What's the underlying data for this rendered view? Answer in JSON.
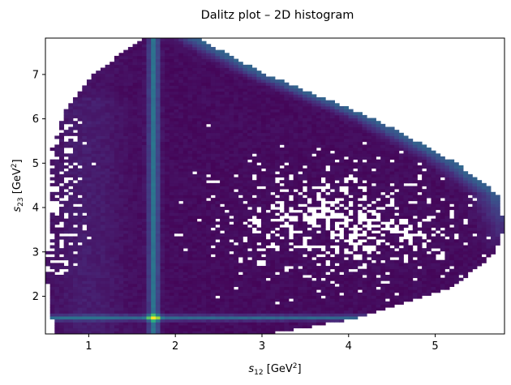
{
  "chart_data": {
    "type": "heatmap",
    "title": "Dalitz plot – 2D histogram",
    "xlabel": {
      "var": "s",
      "sub": "12",
      "unit": "[GeV",
      "sup": "2",
      "close": "]"
    },
    "ylabel": {
      "var": "s",
      "sub": "23",
      "unit": "[GeV",
      "sup": "2",
      "close": "]"
    },
    "xlim": [
      0.5,
      5.8
    ],
    "ylim": [
      1.15,
      7.82
    ],
    "xticks": [
      1,
      2,
      3,
      4,
      5
    ],
    "yticks": [
      2,
      3,
      4,
      5,
      6,
      7
    ],
    "grid": false,
    "colormap": "viridis",
    "bins": {
      "x": 100,
      "y": 100
    },
    "kinematic_boundary": {
      "left_edge": [
        [
          1.15,
          0.6
        ],
        [
          2.4,
          0.52
        ],
        [
          5.2,
          0.55
        ],
        [
          6.2,
          0.72
        ],
        [
          7.0,
          1.05
        ],
        [
          7.5,
          1.4
        ],
        [
          7.82,
          1.62
        ]
      ],
      "right_edge": [
        [
          1.15,
          3.05
        ],
        [
          1.5,
          4.1
        ],
        [
          2.2,
          5.2
        ],
        [
          3.0,
          5.7
        ],
        [
          3.6,
          5.8
        ],
        [
          4.3,
          5.72
        ],
        [
          5.0,
          5.25
        ],
        [
          6.0,
          4.3
        ],
        [
          7.0,
          3.05
        ],
        [
          7.82,
          2.25
        ]
      ]
    },
    "resonance_bands": [
      {
        "axis": "x",
        "center": 1.75,
        "width": 0.06,
        "strength": 0.35
      },
      {
        "axis": "y",
        "center": 1.52,
        "width": 0.06,
        "strength": 0.3
      },
      {
        "axis": "diagonal",
        "note": "band along upper-right boundary",
        "strength": 0.25
      }
    ],
    "peak": {
      "x": 1.75,
      "y": 1.52
    },
    "color_stops": [
      "#440154",
      "#482878",
      "#3e4989",
      "#31688e",
      "#26828e",
      "#1f9e89",
      "#35b779",
      "#6ece58",
      "#b5de2b",
      "#fde725"
    ]
  }
}
